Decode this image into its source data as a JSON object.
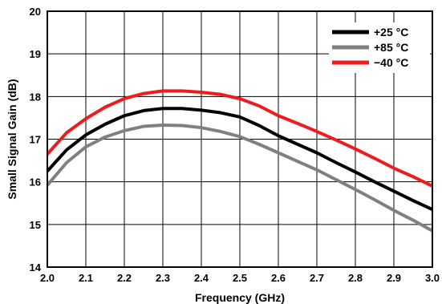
{
  "chart_data": {
    "type": "line",
    "xlabel": "Frequency (GHz)",
    "ylabel": "Small Signal Gain (dB)",
    "xlim": [
      2.0,
      3.0
    ],
    "ylim": [
      14,
      20
    ],
    "x_ticks": [
      "2.0",
      "2.1",
      "2.2",
      "2.3",
      "2.4",
      "2.5",
      "2.6",
      "2.7",
      "2.8",
      "2.9",
      "3.0"
    ],
    "y_ticks": [
      "14",
      "15",
      "16",
      "17",
      "18",
      "19",
      "20"
    ],
    "grid": true,
    "legend_position": "top-right",
    "x": [
      2.0,
      2.05,
      2.1,
      2.15,
      2.2,
      2.25,
      2.3,
      2.35,
      2.4,
      2.45,
      2.5,
      2.55,
      2.6,
      2.65,
      2.7,
      2.75,
      2.8,
      2.85,
      2.9,
      2.95,
      3.0
    ],
    "series": [
      {
        "name": "+25 °C",
        "color": "#000000",
        "values": [
          16.25,
          16.75,
          17.1,
          17.35,
          17.55,
          17.67,
          17.72,
          17.72,
          17.68,
          17.62,
          17.52,
          17.32,
          17.08,
          16.88,
          16.68,
          16.45,
          16.23,
          16.0,
          15.78,
          15.56,
          15.35
        ]
      },
      {
        "name": "+85 °C",
        "color": "#808080",
        "values": [
          15.92,
          16.45,
          16.82,
          17.05,
          17.2,
          17.3,
          17.33,
          17.32,
          17.27,
          17.18,
          17.06,
          16.88,
          16.68,
          16.48,
          16.28,
          16.05,
          15.82,
          15.58,
          15.33,
          15.1,
          14.85
        ]
      },
      {
        "name": "−40 °C",
        "color": "#ee1c1c",
        "values": [
          16.65,
          17.15,
          17.48,
          17.75,
          17.95,
          18.07,
          18.13,
          18.13,
          18.1,
          18.05,
          17.95,
          17.78,
          17.55,
          17.37,
          17.18,
          16.98,
          16.77,
          16.55,
          16.32,
          16.12,
          15.9
        ]
      }
    ]
  }
}
